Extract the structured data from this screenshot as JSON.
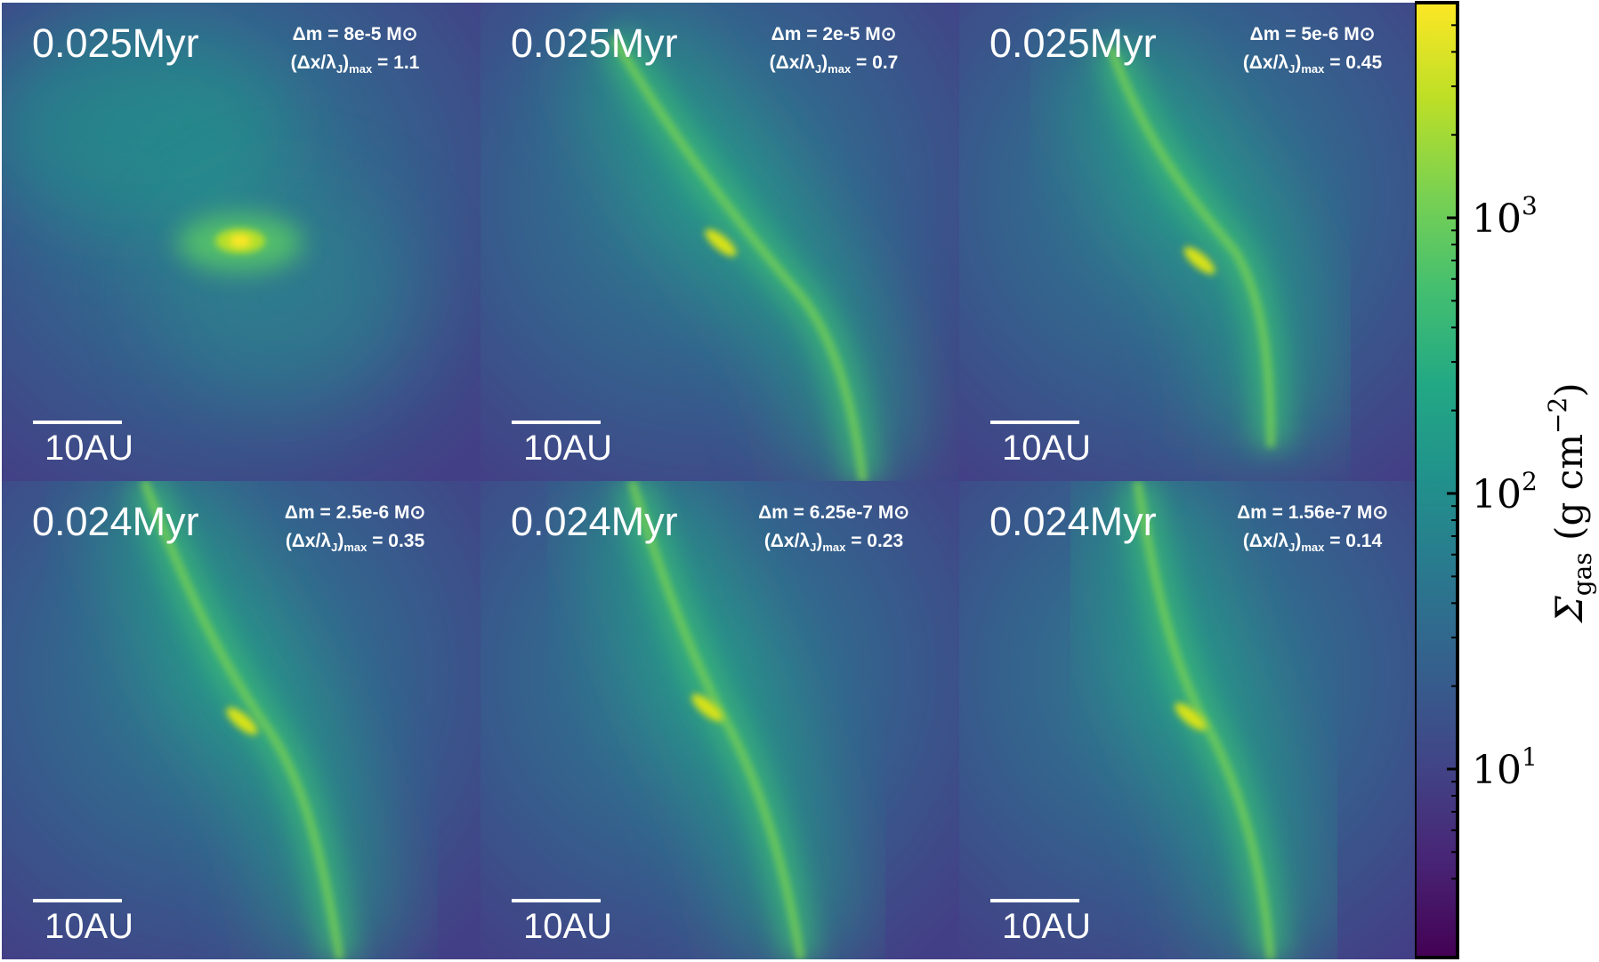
{
  "panels": [
    {
      "time": "0.025Myr",
      "dm": "Δm = 8e-5 M⊙",
      "ratio_pre": "(Δx/λ",
      "ratio_sub": "J",
      "ratio_post": ")",
      "ratio_max": "max",
      "ratio_val": " = 1.1",
      "scale": "10AU"
    },
    {
      "time": "0.025Myr",
      "dm": "Δm = 2e-5 M⊙",
      "ratio_pre": "(Δx/λ",
      "ratio_sub": "J",
      "ratio_post": ")",
      "ratio_max": "max",
      "ratio_val": " = 0.7",
      "scale": "10AU"
    },
    {
      "time": "0.025Myr",
      "dm": "Δm = 5e-6 M⊙",
      "ratio_pre": "(Δx/λ",
      "ratio_sub": "J",
      "ratio_post": ")",
      "ratio_max": "max",
      "ratio_val": " = 0.45",
      "scale": "10AU"
    },
    {
      "time": "0.024Myr",
      "dm": "Δm = 2.5e-6 M⊙",
      "ratio_pre": "(Δx/λ",
      "ratio_sub": "J",
      "ratio_post": ")",
      "ratio_max": "max",
      "ratio_val": " = 0.35",
      "scale": "10AU"
    },
    {
      "time": "0.024Myr",
      "dm": "Δm = 6.25e-7 M⊙",
      "ratio_pre": "(Δx/λ",
      "ratio_sub": "J",
      "ratio_post": ")",
      "ratio_max": "max",
      "ratio_val": " = 0.23",
      "scale": "10AU"
    },
    {
      "time": "0.024Myr",
      "dm": "Δm = 1.56e-7 M⊙",
      "ratio_pre": "(Δx/λ",
      "ratio_sub": "J",
      "ratio_post": ")",
      "ratio_max": "max",
      "ratio_val": " = 0.14",
      "scale": "10AU"
    }
  ],
  "colorbar": {
    "label_sigma": "Σ",
    "label_sub": "gas",
    "label_units": " (g cm",
    "label_exp": "−2",
    "label_close": ")",
    "ticks": [
      {
        "base": "10",
        "exp": "3"
      },
      {
        "base": "10",
        "exp": "2"
      },
      {
        "base": "10",
        "exp": "1"
      }
    ],
    "colormap": [
      "#440154",
      "#482475",
      "#414487",
      "#355f8d",
      "#2a788e",
      "#21918c",
      "#22a884",
      "#44bf70",
      "#7ad151",
      "#bddf26",
      "#fde725"
    ]
  }
}
